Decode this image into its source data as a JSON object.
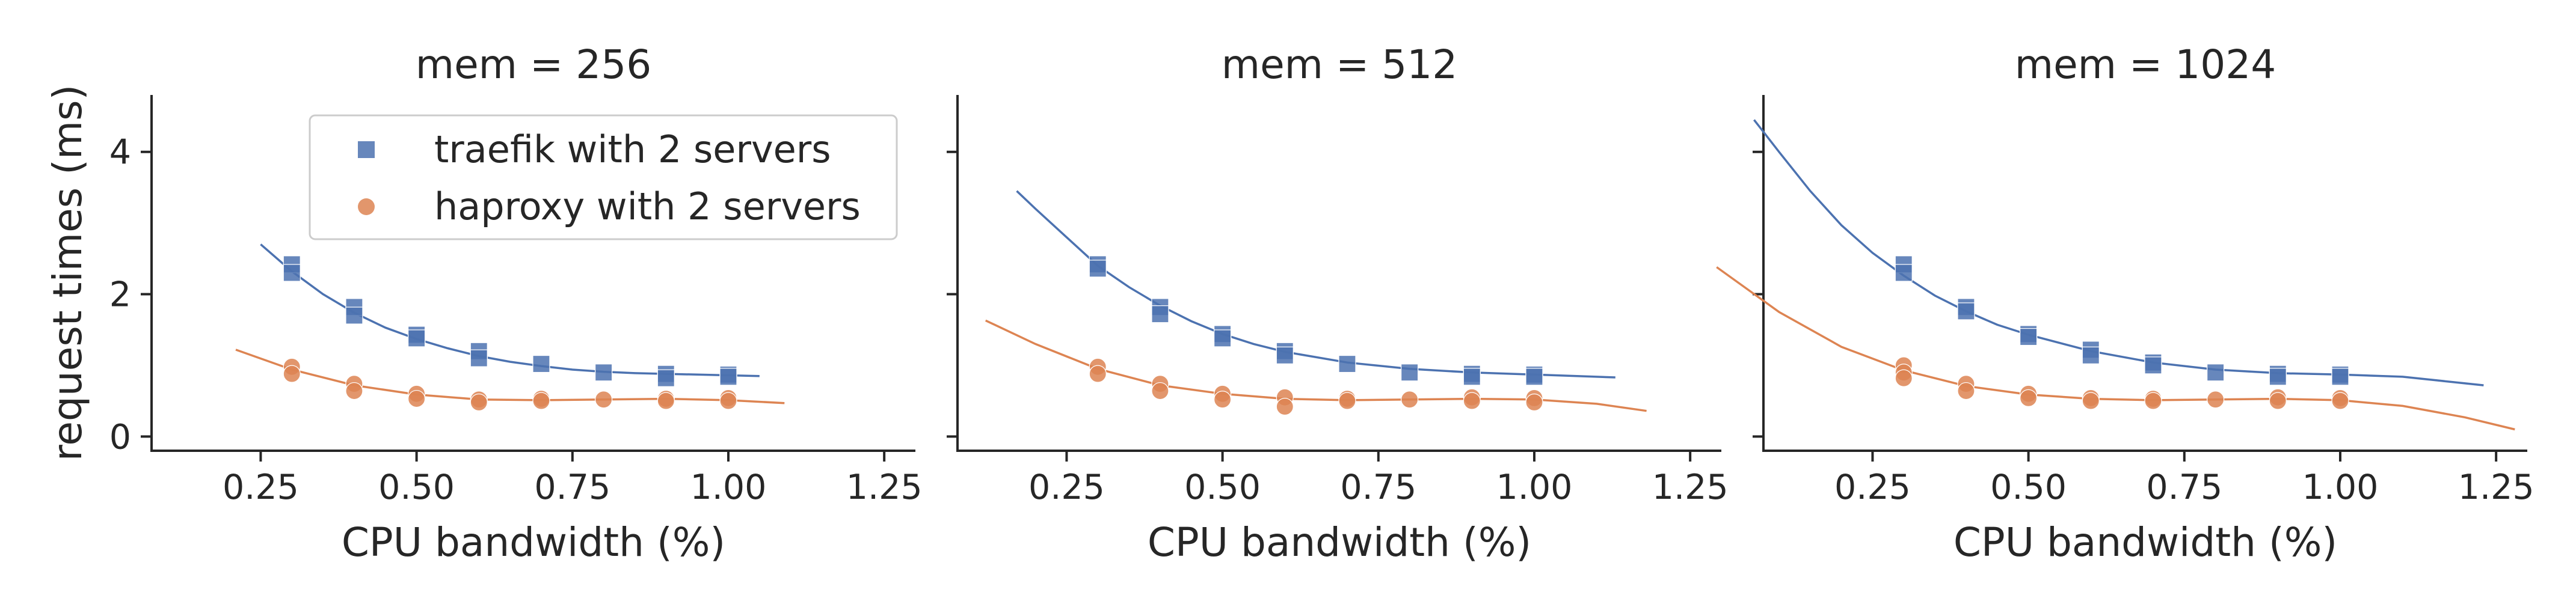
{
  "chart_data": {
    "type": "scatter",
    "ylabel": "request times (ms)",
    "xticks": [
      "0.25",
      "0.50",
      "0.75",
      "1.00",
      "1.25"
    ],
    "yticks": [
      "0",
      "2",
      "4"
    ],
    "legend": {
      "placement": "upper-left of first panel",
      "entries": [
        {
          "label": "traefik with 2 servers",
          "marker": "square",
          "color": "#4C72B0"
        },
        {
          "label": "haproxy with 2 servers",
          "marker": "circle",
          "color": "#DD8452"
        }
      ]
    },
    "panels": [
      {
        "title": "mem = 256",
        "xlabel": "CPU bandwidth (%)",
        "xlim": [
          0.075,
          1.3
        ],
        "ylim": [
          -0.2,
          4.8
        ],
        "series": [
          {
            "name": "traefik with 2 servers",
            "color": "#4C72B0",
            "marker": "square",
            "points": [
              [
                0.3,
                2.42
              ],
              [
                0.3,
                2.3
              ],
              [
                0.4,
                1.82
              ],
              [
                0.4,
                1.7
              ],
              [
                0.5,
                1.43
              ],
              [
                0.5,
                1.38
              ],
              [
                0.6,
                1.2
              ],
              [
                0.6,
                1.1
              ],
              [
                0.7,
                1.02
              ],
              [
                0.8,
                0.9
              ],
              [
                0.9,
                0.88
              ],
              [
                0.9,
                0.82
              ],
              [
                1.0,
                0.87
              ],
              [
                1.0,
                0.84
              ]
            ],
            "fit": {
              "x": [
                0.25,
                0.3,
                0.35,
                0.4,
                0.45,
                0.5,
                0.55,
                0.6,
                0.65,
                0.7,
                0.75,
                0.8,
                0.85,
                0.9,
                0.95,
                1.0,
                1.05
              ],
              "y": [
                2.7,
                2.32,
                2.0,
                1.74,
                1.53,
                1.37,
                1.24,
                1.13,
                1.05,
                0.99,
                0.94,
                0.91,
                0.89,
                0.88,
                0.87,
                0.86,
                0.85
              ]
            }
          },
          {
            "name": "haproxy with 2 servers",
            "color": "#DD8452",
            "marker": "circle",
            "points": [
              [
                0.3,
                0.98
              ],
              [
                0.3,
                0.88
              ],
              [
                0.4,
                0.74
              ],
              [
                0.4,
                0.64
              ],
              [
                0.5,
                0.6
              ],
              [
                0.5,
                0.53
              ],
              [
                0.6,
                0.52
              ],
              [
                0.6,
                0.48
              ],
              [
                0.7,
                0.53
              ],
              [
                0.7,
                0.5
              ],
              [
                0.8,
                0.52
              ],
              [
                0.9,
                0.53
              ],
              [
                0.9,
                0.5
              ],
              [
                1.0,
                0.54
              ],
              [
                1.0,
                0.5
              ]
            ],
            "fit": {
              "x": [
                0.21,
                0.3,
                0.4,
                0.5,
                0.6,
                0.7,
                0.8,
                0.9,
                1.0,
                1.09
              ],
              "y": [
                1.22,
                0.94,
                0.72,
                0.59,
                0.52,
                0.51,
                0.52,
                0.53,
                0.51,
                0.47
              ]
            }
          }
        ]
      },
      {
        "title": "mem = 512",
        "xlabel": "CPU bandwidth (%)",
        "xlim": [
          0.075,
          1.3
        ],
        "ylim": [
          -0.2,
          4.8
        ],
        "series": [
          {
            "name": "traefik with 2 servers",
            "color": "#4C72B0",
            "marker": "square",
            "points": [
              [
                0.3,
                2.42
              ],
              [
                0.3,
                2.36
              ],
              [
                0.4,
                1.82
              ],
              [
                0.4,
                1.72
              ],
              [
                0.5,
                1.44
              ],
              [
                0.5,
                1.38
              ],
              [
                0.6,
                1.2
              ],
              [
                0.6,
                1.14
              ],
              [
                0.7,
                1.02
              ],
              [
                0.8,
                0.9
              ],
              [
                0.9,
                0.88
              ],
              [
                0.9,
                0.84
              ],
              [
                1.0,
                0.87
              ],
              [
                1.0,
                0.84
              ]
            ],
            "fit": {
              "x": [
                0.17,
                0.2,
                0.25,
                0.3,
                0.35,
                0.4,
                0.45,
                0.5,
                0.55,
                0.6,
                0.7,
                0.8,
                0.9,
                1.0,
                1.13
              ],
              "y": [
                3.45,
                3.2,
                2.8,
                2.4,
                2.1,
                1.84,
                1.62,
                1.44,
                1.3,
                1.19,
                1.04,
                0.95,
                0.9,
                0.87,
                0.83
              ]
            }
          },
          {
            "name": "haproxy with 2 servers",
            "color": "#DD8452",
            "marker": "circle",
            "points": [
              [
                0.3,
                0.98
              ],
              [
                0.3,
                0.88
              ],
              [
                0.4,
                0.74
              ],
              [
                0.4,
                0.64
              ],
              [
                0.5,
                0.6
              ],
              [
                0.5,
                0.52
              ],
              [
                0.6,
                0.55
              ],
              [
                0.6,
                0.42
              ],
              [
                0.7,
                0.53
              ],
              [
                0.7,
                0.5
              ],
              [
                0.8,
                0.52
              ],
              [
                0.9,
                0.55
              ],
              [
                0.9,
                0.5
              ],
              [
                1.0,
                0.54
              ],
              [
                1.0,
                0.48
              ]
            ],
            "fit": {
              "x": [
                0.12,
                0.2,
                0.3,
                0.4,
                0.5,
                0.6,
                0.7,
                0.8,
                0.9,
                1.0,
                1.1,
                1.18
              ],
              "y": [
                1.63,
                1.3,
                0.95,
                0.72,
                0.6,
                0.53,
                0.51,
                0.52,
                0.53,
                0.52,
                0.46,
                0.36
              ]
            }
          }
        ]
      },
      {
        "title": "mem = 1024",
        "xlabel": "CPU bandwidth (%)",
        "xlim": [
          0.075,
          1.3
        ],
        "ylim": [
          -0.2,
          4.8
        ],
        "series": [
          {
            "name": "traefik with 2 servers",
            "color": "#4C72B0",
            "marker": "square",
            "points": [
              [
                0.3,
                2.42
              ],
              [
                0.3,
                2.3
              ],
              [
                0.4,
                1.82
              ],
              [
                0.4,
                1.76
              ],
              [
                0.5,
                1.44
              ],
              [
                0.5,
                1.4
              ],
              [
                0.6,
                1.22
              ],
              [
                0.6,
                1.14
              ],
              [
                0.7,
                1.04
              ],
              [
                0.7,
                1.0
              ],
              [
                0.8,
                0.9
              ],
              [
                0.9,
                0.88
              ],
              [
                0.9,
                0.84
              ],
              [
                1.0,
                0.87
              ],
              [
                1.0,
                0.84
              ]
            ],
            "fit": {
              "x": [
                0.06,
                0.1,
                0.15,
                0.2,
                0.25,
                0.3,
                0.35,
                0.4,
                0.45,
                0.5,
                0.6,
                0.7,
                0.8,
                0.9,
                1.0,
                1.1,
                1.23
              ],
              "y": [
                4.45,
                4.0,
                3.45,
                2.97,
                2.58,
                2.26,
                1.98,
                1.76,
                1.57,
                1.43,
                1.2,
                1.04,
                0.94,
                0.89,
                0.87,
                0.84,
                0.72
              ]
            }
          },
          {
            "name": "haproxy with 2 servers",
            "color": "#DD8452",
            "marker": "circle",
            "points": [
              [
                0.3,
                1.0
              ],
              [
                0.3,
                0.9
              ],
              [
                0.3,
                0.82
              ],
              [
                0.4,
                0.74
              ],
              [
                0.4,
                0.64
              ],
              [
                0.5,
                0.6
              ],
              [
                0.5,
                0.54
              ],
              [
                0.6,
                0.54
              ],
              [
                0.6,
                0.5
              ],
              [
                0.7,
                0.53
              ],
              [
                0.7,
                0.5
              ],
              [
                0.8,
                0.52
              ],
              [
                0.9,
                0.55
              ],
              [
                0.9,
                0.5
              ],
              [
                1.0,
                0.54
              ],
              [
                1.0,
                0.5
              ]
            ],
            "fit": {
              "x": [
                0.0,
                0.1,
                0.2,
                0.3,
                0.4,
                0.5,
                0.6,
                0.7,
                0.8,
                0.9,
                1.0,
                1.1,
                1.2,
                1.28
              ],
              "y": [
                2.38,
                1.75,
                1.26,
                0.93,
                0.71,
                0.59,
                0.53,
                0.51,
                0.52,
                0.53,
                0.51,
                0.43,
                0.27,
                0.1
              ]
            }
          }
        ]
      }
    ]
  }
}
